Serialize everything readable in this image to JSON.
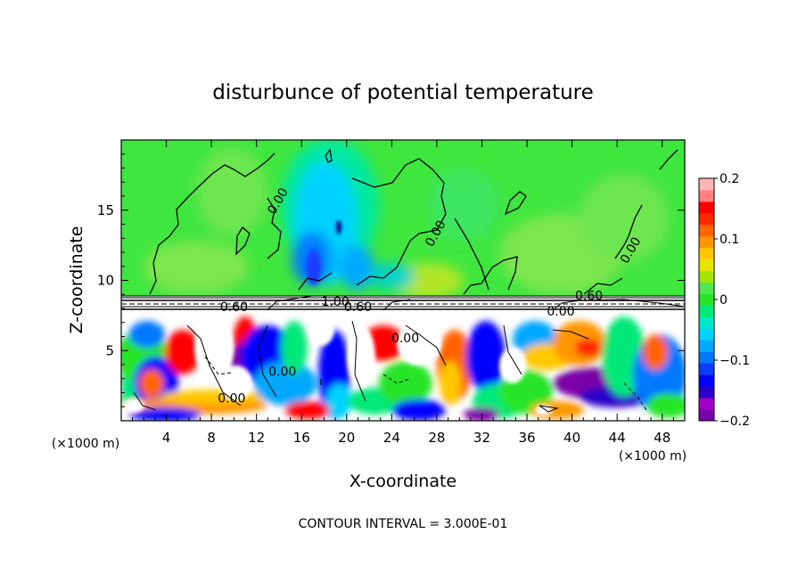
{
  "chart_data": {
    "type": "heatmap",
    "title": "disturbunce of potential temperature",
    "xlabel": "X-coordinate",
    "ylabel": "Z-coordinate",
    "x_unit": "(×1000 m)",
    "z_unit": "(×1000 m)",
    "xlim": [
      0,
      50
    ],
    "ylim": [
      0,
      20
    ],
    "x_ticks": [
      4,
      8,
      12,
      16,
      20,
      24,
      28,
      32,
      36,
      40,
      44,
      48
    ],
    "y_ticks": [
      5,
      10,
      15
    ],
    "colorbar": {
      "min": -0.2,
      "max": 0.2,
      "ticks": [
        {
          "value": 0.2,
          "label": "0.2"
        },
        {
          "value": 0.1,
          "label": "0.1"
        },
        {
          "value": 0,
          "label": "0"
        },
        {
          "value": -0.1,
          "label": "−0.1"
        },
        {
          "value": -0.2,
          "label": "−0.2"
        }
      ],
      "colors": [
        "#7a00a8",
        "#a000c8",
        "#2b00c8",
        "#0000ff",
        "#0a3cff",
        "#0078ff",
        "#00a8ff",
        "#00d2ff",
        "#00e8c8",
        "#00e878",
        "#28e428",
        "#50e650",
        "#a0e600",
        "#e6e600",
        "#ffc800",
        "#ff9600",
        "#ff6400",
        "#ff2800",
        "#ff0000",
        "#ff8080",
        "#ffb4b4"
      ]
    },
    "contour_labels": [
      {
        "text": "0.00",
        "x": 14.2,
        "z": 15.5
      },
      {
        "text": "0.00",
        "x": 28.2,
        "z": 13.2
      },
      {
        "text": "0.00",
        "x": 45.5,
        "z": 12.0
      },
      {
        "text": "0.60",
        "x": 41.5,
        "z": 8.6
      },
      {
        "text": "0.60",
        "x": 10.0,
        "z": 7.8
      },
      {
        "text": "1.00",
        "x": 19.0,
        "z": 8.2
      },
      {
        "text": "0.60",
        "x": 21.0,
        "z": 7.8
      },
      {
        "text": "0.00",
        "x": 39.0,
        "z": 7.5
      },
      {
        "text": "0.00",
        "x": 25.2,
        "z": 5.6
      },
      {
        "text": "0.00",
        "x": 14.3,
        "z": 3.2
      },
      {
        "text": "0.00",
        "x": 9.8,
        "z": 1.3
      }
    ],
    "contour_interval_label": "CONTOUR INTERVAL = 3.000E-01"
  }
}
